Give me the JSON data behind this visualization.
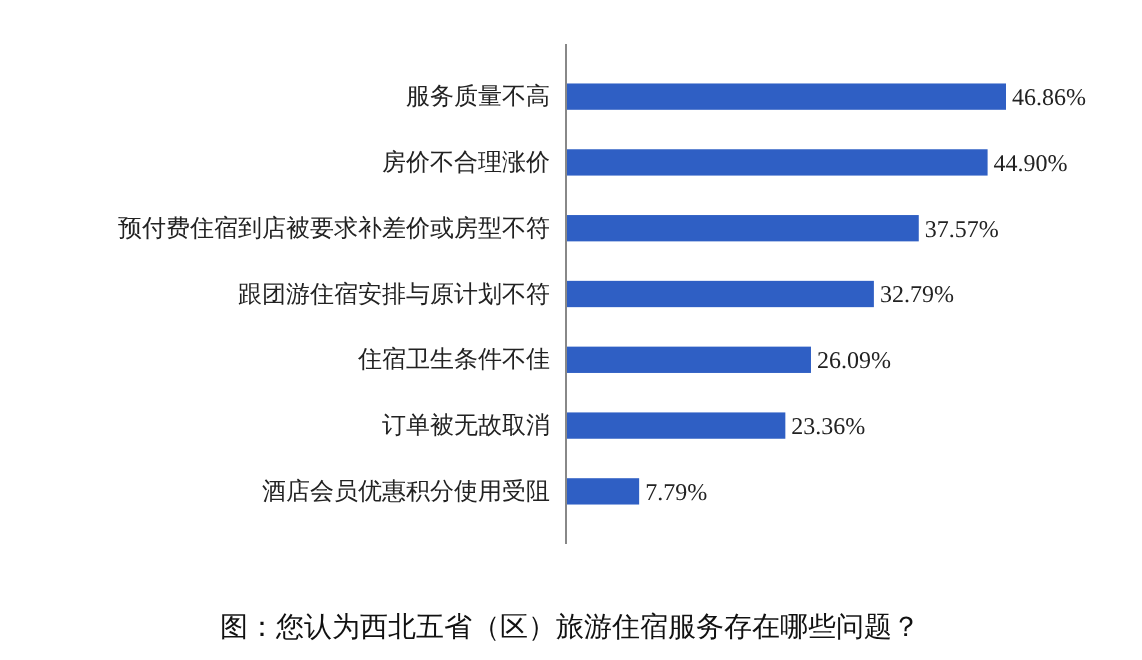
{
  "chart_data": {
    "type": "bar",
    "orientation": "horizontal",
    "title": "图：您认为西北五省（区）旅游住宿服务存在哪些问题？",
    "categories": [
      "服务质量不高",
      "房价不合理涨价",
      "预付费住宿到店被要求补差价或房型不符",
      "跟团游住宿安排与原计划不符",
      "住宿卫生条件不佳",
      "订单被无故取消",
      "酒店会员优惠积分使用受阻"
    ],
    "values": [
      46.86,
      44.9,
      37.57,
      32.79,
      26.09,
      23.36,
      7.79
    ],
    "value_labels": [
      "46.86%",
      "44.90%",
      "37.57%",
      "32.79%",
      "26.09%",
      "23.36%",
      "7.79%"
    ],
    "color": "#2f5fc4",
    "tick_labels": "y"
  }
}
